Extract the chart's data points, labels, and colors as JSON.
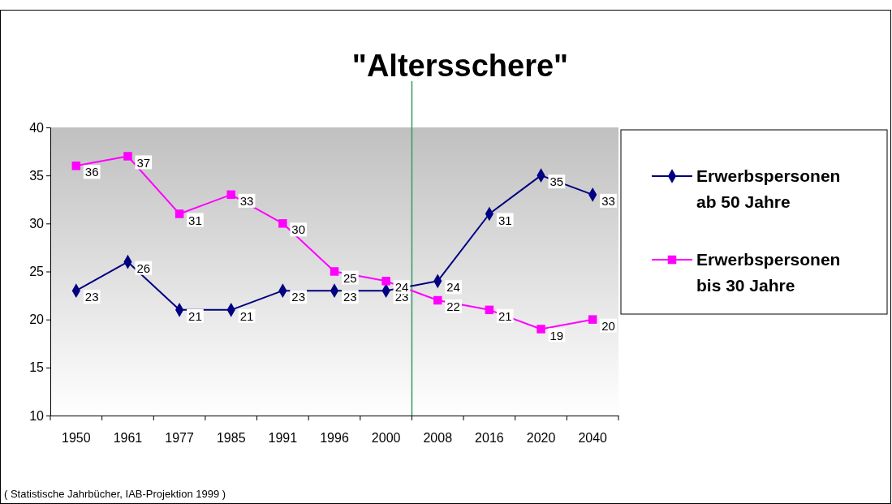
{
  "chart_data": {
    "type": "line",
    "title": "\"Altersschere\"",
    "categories": [
      "1950",
      "1961",
      "1977",
      "1985",
      "1991",
      "1996",
      "2000",
      "2008",
      "2016",
      "2020",
      "2040"
    ],
    "series": [
      {
        "name": "Erwerbspersonen ab 50 Jahre",
        "color": "#000080",
        "marker": "diamond",
        "values": [
          23,
          26,
          21,
          21,
          23,
          23,
          23,
          24,
          31,
          35,
          33
        ]
      },
      {
        "name": "Erwerbspersonen bis 30 Jahre",
        "color": "#ff00ff",
        "marker": "square",
        "values": [
          36,
          37,
          31,
          33,
          30,
          25,
          24,
          22,
          21,
          19,
          20
        ]
      }
    ],
    "ylim": [
      10,
      40
    ],
    "yticks": [
      10,
      15,
      20,
      25,
      30,
      35,
      40
    ],
    "grid": false,
    "legend": "right",
    "data_labels": true,
    "ref_lines": [
      {
        "axis": "x",
        "value": "2000",
        "color": "#339966"
      }
    ],
    "annotations": [
      "( Statistische Jahrbücher, IAB-Projektion 1999 )"
    ]
  }
}
